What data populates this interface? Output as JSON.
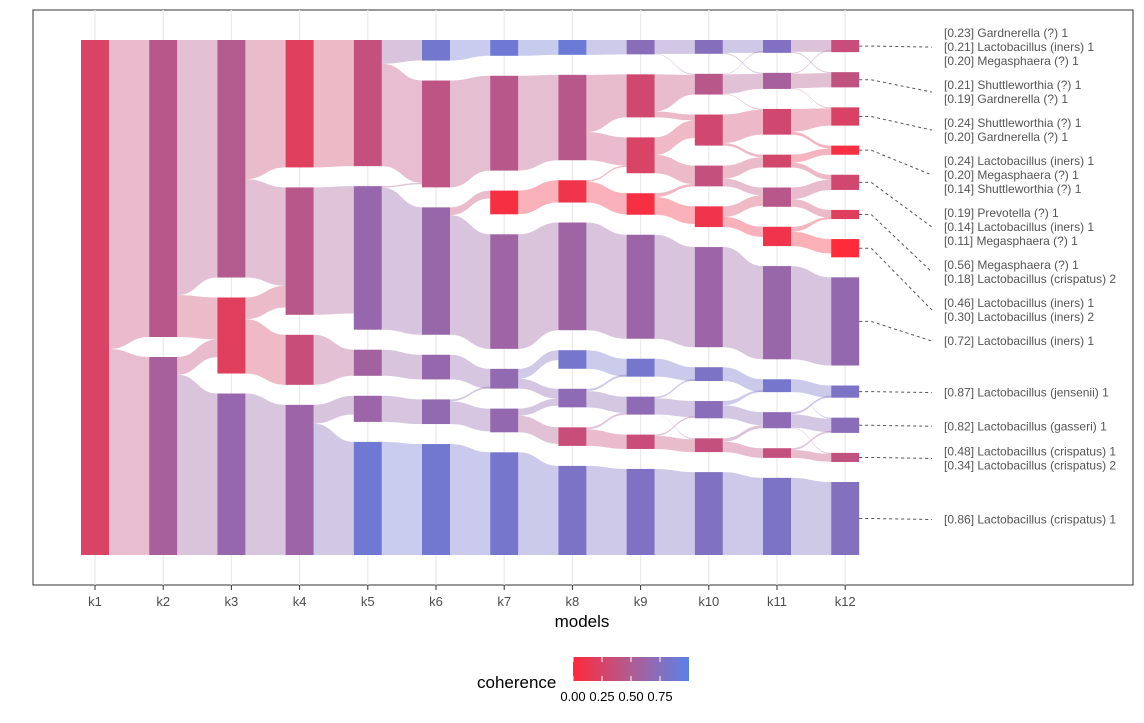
{
  "chart_data": {
    "type": "alluvial",
    "xlabel": "models",
    "models": [
      "k1",
      "k2",
      "k3",
      "k4",
      "k5",
      "k6",
      "k7",
      "k8",
      "k9",
      "k10",
      "k11",
      "k12"
    ],
    "legend": {
      "title": "coherence",
      "ticks": [
        "0.00",
        "0.25",
        "0.50",
        "0.75"
      ],
      "low_color": "#ff2a3a",
      "mid_color": "#b05c92",
      "high_color": "#5a82e8"
    },
    "topics": [
      [
        {
          "size": 1.0,
          "coherence": 0.25
        }
      ],
      [
        {
          "size": 0.6,
          "coherence": 0.45
        },
        {
          "size": 0.4,
          "coherence": 0.55
        }
      ],
      [
        {
          "size": 0.5,
          "coherence": 0.48
        },
        {
          "size": 0.16,
          "coherence": 0.2
        },
        {
          "size": 0.34,
          "coherence": 0.65
        }
      ],
      [
        {
          "size": 0.28,
          "coherence": 0.2
        },
        {
          "size": 0.28,
          "coherence": 0.45
        },
        {
          "size": 0.11,
          "coherence": 0.35
        },
        {
          "size": 0.33,
          "coherence": 0.62
        }
      ],
      [
        {
          "size": 0.29,
          "coherence": 0.38
        },
        {
          "size": 0.33,
          "coherence": 0.65
        },
        {
          "size": 0.06,
          "coherence": 0.58
        },
        {
          "size": 0.06,
          "coherence": 0.62
        },
        {
          "size": 0.26,
          "coherence": 0.88
        }
      ],
      [
        {
          "size": 0.05,
          "coherence": 0.85
        },
        {
          "size": 0.26,
          "coherence": 0.42
        },
        {
          "size": 0.31,
          "coherence": 0.64
        },
        {
          "size": 0.06,
          "coherence": 0.65
        },
        {
          "size": 0.06,
          "coherence": 0.68
        },
        {
          "size": 0.27,
          "coherence": 0.86
        }
      ],
      [
        {
          "size": 0.04,
          "coherence": 0.88
        },
        {
          "size": 0.24,
          "coherence": 0.45
        },
        {
          "size": 0.06,
          "coherence": 0.05
        },
        {
          "size": 0.29,
          "coherence": 0.6
        },
        {
          "size": 0.05,
          "coherence": 0.68
        },
        {
          "size": 0.06,
          "coherence": 0.66
        },
        {
          "size": 0.26,
          "coherence": 0.84
        }
      ],
      [
        {
          "size": 0.04,
          "coherence": 0.9
        },
        {
          "size": 0.23,
          "coherence": 0.45
        },
        {
          "size": 0.06,
          "coherence": 0.1
        },
        {
          "size": 0.29,
          "coherence": 0.6
        },
        {
          "size": 0.05,
          "coherence": 0.84
        },
        {
          "size": 0.05,
          "coherence": 0.7
        },
        {
          "size": 0.05,
          "coherence": 0.35
        },
        {
          "size": 0.24,
          "coherence": 0.8
        }
      ],
      [
        {
          "size": 0.04,
          "coherence": 0.72
        },
        {
          "size": 0.12,
          "coherence": 0.3
        },
        {
          "size": 0.1,
          "coherence": 0.25
        },
        {
          "size": 0.06,
          "coherence": 0.05
        },
        {
          "size": 0.29,
          "coherence": 0.62
        },
        {
          "size": 0.05,
          "coherence": 0.84
        },
        {
          "size": 0.05,
          "coherence": 0.7
        },
        {
          "size": 0.04,
          "coherence": 0.35
        },
        {
          "size": 0.24,
          "coherence": 0.78
        }
      ],
      [
        {
          "size": 0.04,
          "coherence": 0.75
        },
        {
          "size": 0.06,
          "coherence": 0.45
        },
        {
          "size": 0.09,
          "coherence": 0.3
        },
        {
          "size": 0.06,
          "coherence": 0.38
        },
        {
          "size": 0.06,
          "coherence": 0.1
        },
        {
          "size": 0.29,
          "coherence": 0.62
        },
        {
          "size": 0.04,
          "coherence": 0.8
        },
        {
          "size": 0.05,
          "coherence": 0.72
        },
        {
          "size": 0.04,
          "coherence": 0.38
        },
        {
          "size": 0.24,
          "coherence": 0.78
        }
      ],
      [
        {
          "size": 0.04,
          "coherence": 0.78
        },
        {
          "size": 0.05,
          "coherence": 0.55
        },
        {
          "size": 0.08,
          "coherence": 0.3
        },
        {
          "size": 0.04,
          "coherence": 0.28
        },
        {
          "size": 0.06,
          "coherence": 0.45
        },
        {
          "size": 0.06,
          "coherence": 0.1
        },
        {
          "size": 0.29,
          "coherence": 0.64
        },
        {
          "size": 0.04,
          "coherence": 0.84
        },
        {
          "size": 0.05,
          "coherence": 0.7
        },
        {
          "size": 0.03,
          "coherence": 0.38
        },
        {
          "size": 0.24,
          "coherence": 0.8
        }
      ],
      [
        {
          "size": 0.04,
          "coherence": 0.35
        },
        {
          "size": 0.05,
          "coherence": 0.4
        },
        {
          "size": 0.06,
          "coherence": 0.24
        },
        {
          "size": 0.03,
          "coherence": 0.05
        },
        {
          "size": 0.05,
          "coherence": 0.3
        },
        {
          "size": 0.03,
          "coherence": 0.2
        },
        {
          "size": 0.06,
          "coherence": 0.0
        },
        {
          "size": 0.29,
          "coherence": 0.66
        },
        {
          "size": 0.04,
          "coherence": 0.8
        },
        {
          "size": 0.05,
          "coherence": 0.72
        },
        {
          "size": 0.03,
          "coherence": 0.4
        },
        {
          "size": 0.24,
          "coherence": 0.76
        }
      ]
    ],
    "labels": [
      [
        "[0.23] Gardnerella (?) 1",
        "[0.21] Lactobacillus (iners) 1",
        "[0.20] Megasphaera (?) 1"
      ],
      [
        "[0.21] Shuttleworthia (?) 1",
        "[0.19] Gardnerella (?) 1"
      ],
      [
        "[0.24] Shuttleworthia (?) 1",
        "[0.20] Gardnerella (?) 1"
      ],
      [
        "[0.24] Lactobacillus (iners) 1",
        "[0.20] Megasphaera (?) 1",
        "[0.14] Shuttleworthia (?) 1"
      ],
      [
        "[0.19] Prevotella (?) 1",
        "[0.14] Lactobacillus (iners) 1",
        "[0.11] Megasphaera (?) 1"
      ],
      [
        "[0.56] Megasphaera (?) 1",
        "[0.18] Lactobacillus (crispatus) 2"
      ],
      [
        "[0.46] Lactobacillus (iners) 1",
        "[0.30] Lactobacillus (iners) 2"
      ],
      [
        "[0.72] Lactobacillus (iners) 1"
      ],
      [
        "[0.87] Lactobacillus (jensenii) 1"
      ],
      [
        "[0.82] Lactobacillus (gasseri) 1"
      ],
      [
        "[0.48] Lactobacillus (crispatus) 1",
        "[0.34] Lactobacillus (crispatus) 2"
      ],
      [
        "[0.86] Lactobacillus (crispatus) 1"
      ]
    ]
  }
}
